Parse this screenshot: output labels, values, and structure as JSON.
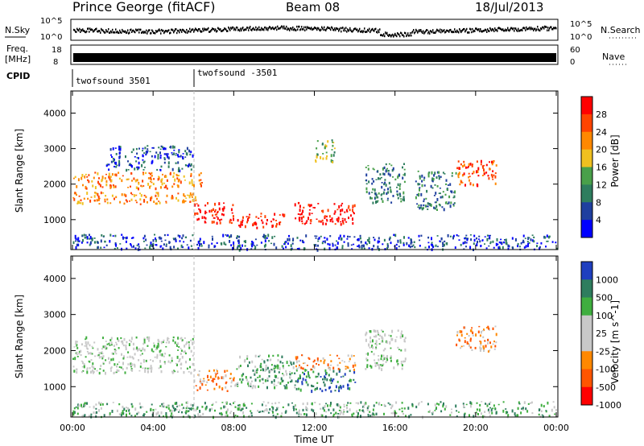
{
  "header": {
    "station": "Prince George (fitACF)",
    "beam": "Beam 08",
    "date": "18/Jul/2013"
  },
  "strip_labels": {
    "nsky": "N.Sky",
    "freq_line1": "Freq.",
    "freq_line2": "[MHz]",
    "cpid": "CPID",
    "nsearch": "N.Search",
    "nave": "Nave"
  },
  "strip_ticks": {
    "nsky_left": [
      "10^5",
      "10^0"
    ],
    "nsky_right": [
      "10^5",
      "10^0"
    ],
    "freq_left": [
      "18",
      "8"
    ],
    "nave_right": [
      "60",
      "0"
    ]
  },
  "cpid_segments": [
    {
      "label": "twofsound 3501",
      "start_hour": 0
    },
    {
      "label": "twofsound -3501",
      "start_hour": 6
    }
  ],
  "colors": {
    "power_scale": [
      "#0000ff",
      "#1f3f9f",
      "#2e7d5e",
      "#49a04a",
      "#f0c020",
      "#ff8800",
      "#ff4400",
      "#ff0000"
    ],
    "velocity_scale": [
      "#1f3fbf",
      "#2e7d5e",
      "#3fae3f",
      "#c8c8c8",
      "#c8c8c8",
      "#ff8800",
      "#ff5500",
      "#ff0000"
    ]
  },
  "chart_data": [
    {
      "type": "heatmap",
      "name": "power",
      "ylabel": "Slant Range [km]",
      "xlabel": "",
      "x_ticks": [
        "00:00",
        "04:00",
        "08:00",
        "12:00",
        "16:00",
        "20:00",
        "00:00"
      ],
      "y_ticks": [
        1000,
        2000,
        3000,
        4000
      ],
      "xlim_hours": [
        0,
        24
      ],
      "ylim_km": [
        180,
        4600
      ],
      "colorbar": {
        "label": "Power [dB]",
        "ticks": [
          "4",
          "8",
          "12",
          "16",
          "20",
          "24",
          "28"
        ]
      },
      "bands": [
        {
          "t0": 0.0,
          "t1": 6.5,
          "r0": 1900,
          "r1": 2350,
          "level": 5
        },
        {
          "t0": 0.0,
          "t1": 6.2,
          "r0": 1450,
          "r1": 1800,
          "level": 5
        },
        {
          "t0": 1.5,
          "t1": 6.0,
          "r0": 2400,
          "r1": 3100,
          "level": 1
        },
        {
          "t0": 6.0,
          "t1": 8.0,
          "r0": 900,
          "r1": 1500,
          "level": 7
        },
        {
          "t0": 8.0,
          "t1": 10.5,
          "r0": 800,
          "r1": 1200,
          "level": 7
        },
        {
          "t0": 11.0,
          "t1": 14.0,
          "r0": 900,
          "r1": 1500,
          "level": 7
        },
        {
          "t0": 12.0,
          "t1": 13.0,
          "r0": 2600,
          "r1": 3300,
          "level": 3
        },
        {
          "t0": 14.5,
          "t1": 16.5,
          "r0": 1500,
          "r1": 2600,
          "level": 2
        },
        {
          "t0": 17.0,
          "t1": 19.0,
          "r0": 1300,
          "r1": 2400,
          "level": 2
        },
        {
          "t0": 19.0,
          "t1": 21.0,
          "r0": 2000,
          "r1": 2700,
          "level": 6
        },
        {
          "t0": 0.0,
          "t1": 24.0,
          "r0": 180,
          "r1": 600,
          "level": 1
        }
      ]
    },
    {
      "type": "heatmap",
      "name": "velocity",
      "ylabel": "Slant Range [km]",
      "xlabel": "Time UT",
      "x_ticks": [
        "00:00",
        "04:00",
        "08:00",
        "12:00",
        "16:00",
        "20:00",
        "00:00"
      ],
      "y_ticks": [
        1000,
        2000,
        3000,
        4000
      ],
      "xlim_hours": [
        0,
        24
      ],
      "ylim_km": [
        180,
        4600
      ],
      "colorbar": {
        "label": "Velocity [m s^-1]",
        "ticks": [
          "1000",
          "500",
          "100",
          "25",
          "-25",
          "-100",
          "-500",
          "-1000"
        ]
      },
      "bands": [
        {
          "t0": 0.0,
          "t1": 6.0,
          "r0": 1400,
          "r1": 2400,
          "level": 3
        },
        {
          "t0": 6.0,
          "t1": 8.0,
          "r0": 900,
          "r1": 1500,
          "level": 5
        },
        {
          "t0": 8.0,
          "t1": 11.0,
          "r0": 1000,
          "r1": 1900,
          "level": 2
        },
        {
          "t0": 11.0,
          "t1": 14.0,
          "r0": 900,
          "r1": 1500,
          "level": 1
        },
        {
          "t0": 11.0,
          "t1": 14.0,
          "r0": 1500,
          "r1": 1900,
          "level": 5
        },
        {
          "t0": 14.5,
          "t1": 16.5,
          "r0": 1500,
          "r1": 2600,
          "level": 3
        },
        {
          "t0": 19.0,
          "t1": 21.0,
          "r0": 2000,
          "r1": 2700,
          "level": 5
        },
        {
          "t0": 0.0,
          "t1": 24.0,
          "r0": 180,
          "r1": 600,
          "level": 2
        }
      ]
    }
  ]
}
